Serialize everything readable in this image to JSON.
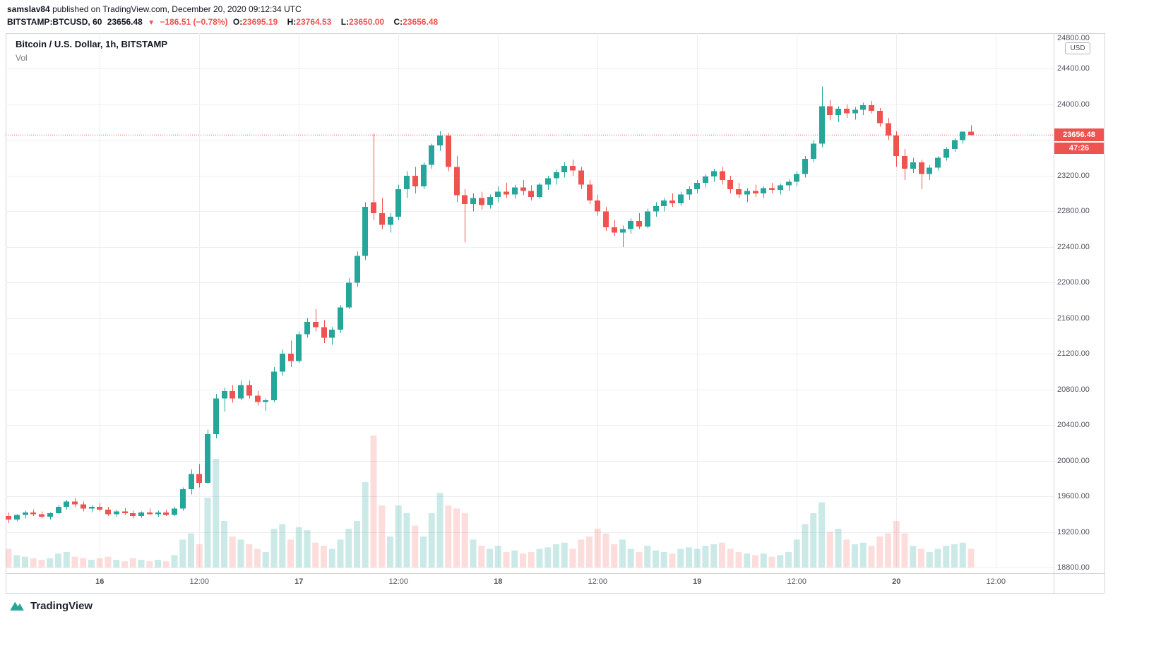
{
  "header": {
    "username": "samslav84",
    "published_text": " published on TradingView.com, December 20, 2020 09:12:34 UTC",
    "symbol": "BITSTAMP:BTCUSD, 60",
    "last_price": "23656.48",
    "down_triangle": "▼",
    "change": "−186.51 (−0.78%)",
    "ohlc": [
      {
        "label": "O:",
        "value": "23695.19"
      },
      {
        "label": "H:",
        "value": "23764.53"
      },
      {
        "label": "L:",
        "value": "23650.00"
      },
      {
        "label": "C:",
        "value": "23656.48"
      }
    ]
  },
  "legend": {
    "title": "Bitcoin / U.S. Dollar, 1h, BITSTAMP",
    "vol_label": "Vol"
  },
  "price_axis": {
    "labels": [
      "24800.00",
      "24400.00",
      "24000.00",
      "23200.00",
      "22800.00",
      "22400.00",
      "22000.00",
      "21600.00",
      "21200.00",
      "20800.00",
      "20400.00",
      "20000.00",
      "19600.00",
      "19200.00",
      "18800.00"
    ],
    "currency_button": "USD",
    "price_tag": "23656.48",
    "countdown": "47:26"
  },
  "time_axis": {
    "ticks": [
      {
        "label": "16",
        "i": 11
      },
      {
        "label": "12:00",
        "i": 23
      },
      {
        "label": "17",
        "i": 35
      },
      {
        "label": "12:00",
        "i": 47
      },
      {
        "label": "18",
        "i": 59
      },
      {
        "label": "12:00",
        "i": 71
      },
      {
        "label": "19",
        "i": 83
      },
      {
        "label": "12:00",
        "i": 95
      },
      {
        "label": "20",
        "i": 107
      },
      {
        "label": "12:00",
        "i": 119
      }
    ]
  },
  "footer": {
    "brand": "TradingView"
  },
  "colors": {
    "up": "#26a69a",
    "down": "#ef5350",
    "vol_up": "rgba(38,166,154,0.24)",
    "vol_down": "rgba(239,83,80,0.20)",
    "grid": "#eceef2",
    "last_price_line": "#ef5350"
  },
  "chart_data": {
    "type": "candlestick",
    "title": "Bitcoin / U.S. Dollar, 1h, BITSTAMP",
    "symbol": "BITSTAMP:BTCUSD",
    "interval": "60",
    "timezone_note": "x from Dec 15 13:00 to Dec 20 09:00 UTC, hourly",
    "price_axis": {
      "min": 18800,
      "max": 24800,
      "step": 400
    },
    "last_close": 23656.48,
    "ohlc_last": {
      "o": 23695.19,
      "h": 23764.53,
      "l": 23650.0,
      "c": 23656.48
    },
    "candle_format": [
      "open",
      "high",
      "low",
      "close",
      "volume_rel"
    ],
    "candles": [
      [
        19380,
        19420,
        19300,
        19340,
        12
      ],
      [
        19340,
        19400,
        19320,
        19390,
        8
      ],
      [
        19390,
        19440,
        19350,
        19420,
        7
      ],
      [
        19420,
        19450,
        19380,
        19400,
        6
      ],
      [
        19400,
        19430,
        19350,
        19370,
        5
      ],
      [
        19370,
        19420,
        19340,
        19410,
        6
      ],
      [
        19410,
        19500,
        19400,
        19480,
        9
      ],
      [
        19480,
        19560,
        19450,
        19540,
        10
      ],
      [
        19540,
        19580,
        19480,
        19510,
        7
      ],
      [
        19510,
        19540,
        19430,
        19460,
        6
      ],
      [
        19460,
        19500,
        19420,
        19480,
        5
      ],
      [
        19480,
        19520,
        19430,
        19450,
        6
      ],
      [
        19450,
        19480,
        19380,
        19400,
        7
      ],
      [
        19400,
        19450,
        19370,
        19430,
        5
      ],
      [
        19430,
        19470,
        19390,
        19410,
        4
      ],
      [
        19410,
        19440,
        19350,
        19380,
        6
      ],
      [
        19380,
        19430,
        19360,
        19420,
        5
      ],
      [
        19420,
        19460,
        19390,
        19400,
        4
      ],
      [
        19400,
        19440,
        19370,
        19420,
        5
      ],
      [
        19420,
        19450,
        19380,
        19390,
        4
      ],
      [
        19390,
        19480,
        19380,
        19460,
        8
      ],
      [
        19460,
        19700,
        19440,
        19680,
        18
      ],
      [
        19680,
        19900,
        19620,
        19850,
        22
      ],
      [
        19850,
        19960,
        19700,
        19750,
        15
      ],
      [
        19750,
        20350,
        19740,
        20300,
        45
      ],
      [
        20300,
        20750,
        20250,
        20700,
        70
      ],
      [
        20700,
        20820,
        20550,
        20780,
        30
      ],
      [
        20780,
        20850,
        20650,
        20700,
        20
      ],
      [
        20700,
        20900,
        20680,
        20850,
        18
      ],
      [
        20850,
        20900,
        20700,
        20730,
        15
      ],
      [
        20730,
        20780,
        20620,
        20660,
        12
      ],
      [
        20660,
        20700,
        20560,
        20680,
        10
      ],
      [
        20680,
        21050,
        20660,
        21000,
        25
      ],
      [
        21000,
        21250,
        20950,
        21200,
        28
      ],
      [
        21200,
        21350,
        21050,
        21120,
        18
      ],
      [
        21120,
        21450,
        21100,
        21420,
        26
      ],
      [
        21420,
        21600,
        21380,
        21560,
        24
      ],
      [
        21560,
        21700,
        21450,
        21500,
        16
      ],
      [
        21500,
        21580,
        21320,
        21380,
        14
      ],
      [
        21380,
        21500,
        21300,
        21470,
        12
      ],
      [
        21470,
        21750,
        21430,
        21720,
        18
      ],
      [
        21720,
        22050,
        21700,
        22000,
        25
      ],
      [
        22000,
        22350,
        21950,
        22300,
        30
      ],
      [
        22300,
        22900,
        22250,
        22850,
        55
      ],
      [
        22900,
        23670,
        22700,
        22780,
        85
      ],
      [
        22780,
        22950,
        22600,
        22650,
        40
      ],
      [
        22650,
        22780,
        22560,
        22740,
        20
      ],
      [
        22740,
        23100,
        22700,
        23050,
        40
      ],
      [
        23050,
        23250,
        22950,
        23200,
        35
      ],
      [
        23200,
        23300,
        23000,
        23080,
        27
      ],
      [
        23080,
        23350,
        23050,
        23320,
        20
      ],
      [
        23320,
        23560,
        23280,
        23540,
        35
      ],
      [
        23540,
        23700,
        23480,
        23650,
        48
      ],
      [
        23650,
        23680,
        23250,
        23300,
        40
      ],
      [
        23300,
        23420,
        22900,
        22980,
        38
      ],
      [
        22980,
        23050,
        22450,
        22880,
        35
      ],
      [
        22880,
        23000,
        22800,
        22950,
        18
      ],
      [
        22950,
        23020,
        22820,
        22870,
        14
      ],
      [
        22870,
        22990,
        22830,
        22960,
        12
      ],
      [
        22960,
        23080,
        22900,
        23020,
        14
      ],
      [
        23020,
        23120,
        22950,
        22990,
        10
      ],
      [
        22990,
        23100,
        22940,
        23070,
        11
      ],
      [
        23070,
        23150,
        22980,
        23030,
        9
      ],
      [
        23030,
        23090,
        22920,
        22960,
        10
      ],
      [
        22960,
        23120,
        22940,
        23100,
        12
      ],
      [
        23100,
        23200,
        23040,
        23170,
        13
      ],
      [
        23170,
        23270,
        23100,
        23240,
        15
      ],
      [
        23240,
        23350,
        23180,
        23310,
        16
      ],
      [
        23310,
        23380,
        23200,
        23260,
        12
      ],
      [
        23260,
        23300,
        23050,
        23100,
        18
      ],
      [
        23100,
        23150,
        22880,
        22920,
        20
      ],
      [
        22920,
        22980,
        22750,
        22800,
        25
      ],
      [
        22800,
        22850,
        22580,
        22620,
        22
      ],
      [
        22620,
        22700,
        22520,
        22560,
        15
      ],
      [
        22560,
        22640,
        22400,
        22600,
        18
      ],
      [
        22600,
        22720,
        22550,
        22690,
        12
      ],
      [
        22690,
        22780,
        22600,
        22630,
        10
      ],
      [
        22630,
        22830,
        22610,
        22800,
        14
      ],
      [
        22800,
        22900,
        22740,
        22860,
        11
      ],
      [
        22860,
        22950,
        22800,
        22920,
        10
      ],
      [
        22920,
        23000,
        22850,
        22890,
        9
      ],
      [
        22890,
        23020,
        22860,
        22990,
        12
      ],
      [
        22990,
        23080,
        22930,
        23050,
        13
      ],
      [
        23050,
        23150,
        23000,
        23120,
        12
      ],
      [
        23120,
        23220,
        23070,
        23190,
        14
      ],
      [
        23190,
        23280,
        23130,
        23250,
        15
      ],
      [
        23250,
        23300,
        23100,
        23150,
        16
      ],
      [
        23150,
        23200,
        23000,
        23050,
        12
      ],
      [
        23050,
        23120,
        22950,
        22990,
        10
      ],
      [
        22990,
        23060,
        22900,
        23030,
        9
      ],
      [
        23030,
        23100,
        22960,
        23000,
        8
      ],
      [
        23000,
        23080,
        22950,
        23060,
        9
      ],
      [
        23060,
        23120,
        23000,
        23040,
        7
      ],
      [
        23040,
        23110,
        22990,
        23090,
        8
      ],
      [
        23090,
        23160,
        23030,
        23130,
        10
      ],
      [
        23130,
        23250,
        23080,
        23220,
        18
      ],
      [
        23220,
        23420,
        23180,
        23390,
        28
      ],
      [
        23390,
        23600,
        23350,
        23560,
        35
      ],
      [
        23560,
        24200,
        23520,
        23980,
        42
      ],
      [
        23980,
        24050,
        23820,
        23880,
        23
      ],
      [
        23880,
        23980,
        23800,
        23950,
        25
      ],
      [
        23950,
        24000,
        23850,
        23900,
        18
      ],
      [
        23900,
        23970,
        23830,
        23940,
        15
      ],
      [
        23940,
        24020,
        23880,
        23990,
        16
      ],
      [
        23990,
        24040,
        23900,
        23930,
        14
      ],
      [
        23930,
        23960,
        23750,
        23790,
        20
      ],
      [
        23790,
        23850,
        23600,
        23650,
        22
      ],
      [
        23650,
        23700,
        23300,
        23420,
        30
      ],
      [
        23420,
        23500,
        23150,
        23280,
        22
      ],
      [
        23280,
        23400,
        23230,
        23350,
        14
      ],
      [
        23350,
        23380,
        23050,
        23220,
        12
      ],
      [
        23220,
        23320,
        23150,
        23290,
        10
      ],
      [
        23290,
        23420,
        23260,
        23400,
        12
      ],
      [
        23400,
        23520,
        23370,
        23500,
        14
      ],
      [
        23500,
        23620,
        23470,
        23600,
        15
      ],
      [
        23600,
        23700,
        23560,
        23695,
        16
      ],
      [
        23695.19,
        23764.53,
        23650.0,
        23656.48,
        12
      ]
    ]
  }
}
